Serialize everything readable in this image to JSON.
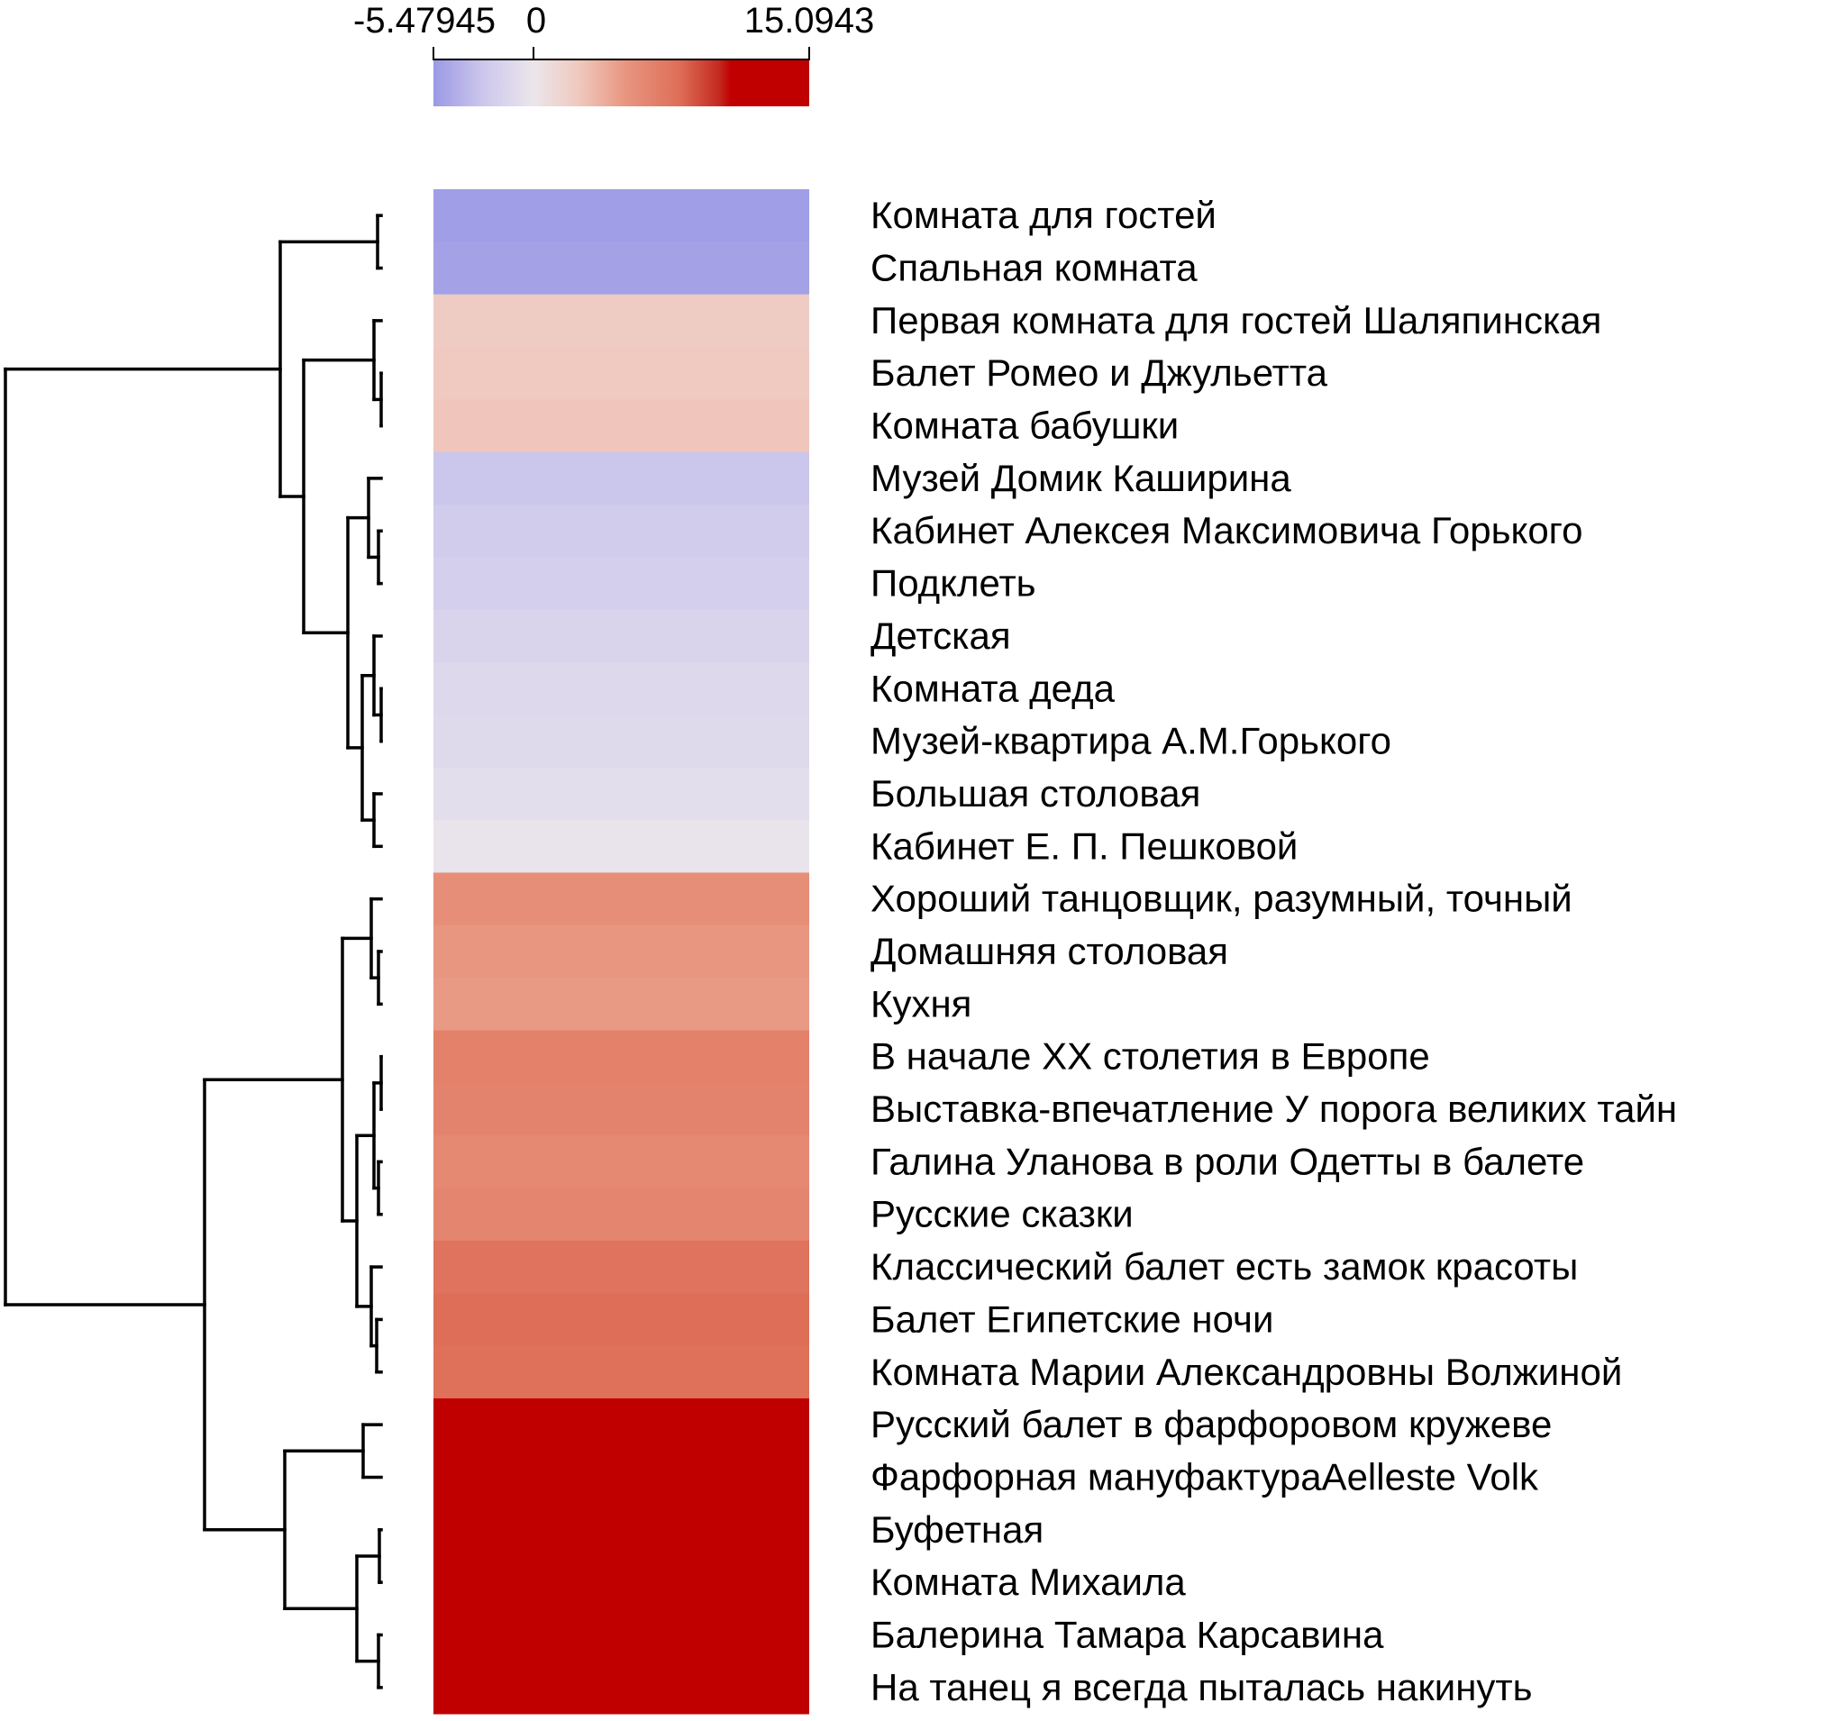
{
  "chart_data": {
    "type": "heatmap",
    "title": "",
    "color_key": {
      "min_label": "-5.47945",
      "zero_label": "0",
      "max_label": "15.0943",
      "range": [
        -5.47945,
        15.0943
      ],
      "colors": {
        "low": "#9b99e6",
        "mid": "#ebe6eb",
        "high": "#c00000"
      }
    },
    "dendrogram": "rows, left",
    "rows": [
      {
        "label": "Комната для гостей",
        "value": -5.2
      },
      {
        "label": "Спальная комната",
        "value": -5.0
      },
      {
        "label": "Первая комната для гостей Шаляпинская",
        "value": 2.2
      },
      {
        "label": "Балет Ромео и Джульетта",
        "value": 2.4
      },
      {
        "label": "Комната бабушки",
        "value": 2.6
      },
      {
        "label": "Музей Домик Каширина",
        "value": -2.8
      },
      {
        "label": "Кабинет Алексея Максимовича Горького",
        "value": -2.3
      },
      {
        "label": "Подклеть",
        "value": -2.1
      },
      {
        "label": "Детская",
        "value": -1.6
      },
      {
        "label": "Комната деда",
        "value": -1.3
      },
      {
        "label": "Музей-квартира А.М.Горького",
        "value": -1.2
      },
      {
        "label": "Большая столовая",
        "value": -0.7
      },
      {
        "label": "Кабинет Е. П. Пешковой",
        "value": -0.2
      },
      {
        "label": "Хороший танцовщик, разумный, точный",
        "value": 5.6
      },
      {
        "label": "Домашняя столовая",
        "value": 5.0
      },
      {
        "label": "Кухня",
        "value": 4.8
      },
      {
        "label": "В начале XX столетия в Европе",
        "value": 6.6
      },
      {
        "label": "Выставка-впечатление У порога великих тайн",
        "value": 6.4
      },
      {
        "label": "Галина Уланова в роли Одетты в балете",
        "value": 6.0
      },
      {
        "label": "Русские сказки",
        "value": 6.3
      },
      {
        "label": "Классический балет есть замок красоты",
        "value": 7.6
      },
      {
        "label": "Балет Египетские ночи",
        "value": 8.0
      },
      {
        "label": "Комната Марии Александровны Волжиной",
        "value": 7.8
      },
      {
        "label": "Русский балет в фарфоровом кружеве",
        "value": 15.0
      },
      {
        "label": "Фарфорная мануфактураAelleste Volk",
        "value": 14.6
      },
      {
        "label": "Буфетная",
        "value": 12.6
      },
      {
        "label": "Комната Михаила",
        "value": 12.4
      },
      {
        "label": "Балерина Тамара Карсавина",
        "value": 11.4
      },
      {
        "label": "На танец я всегда пыталась накинуть",
        "value": 11.2
      }
    ]
  }
}
